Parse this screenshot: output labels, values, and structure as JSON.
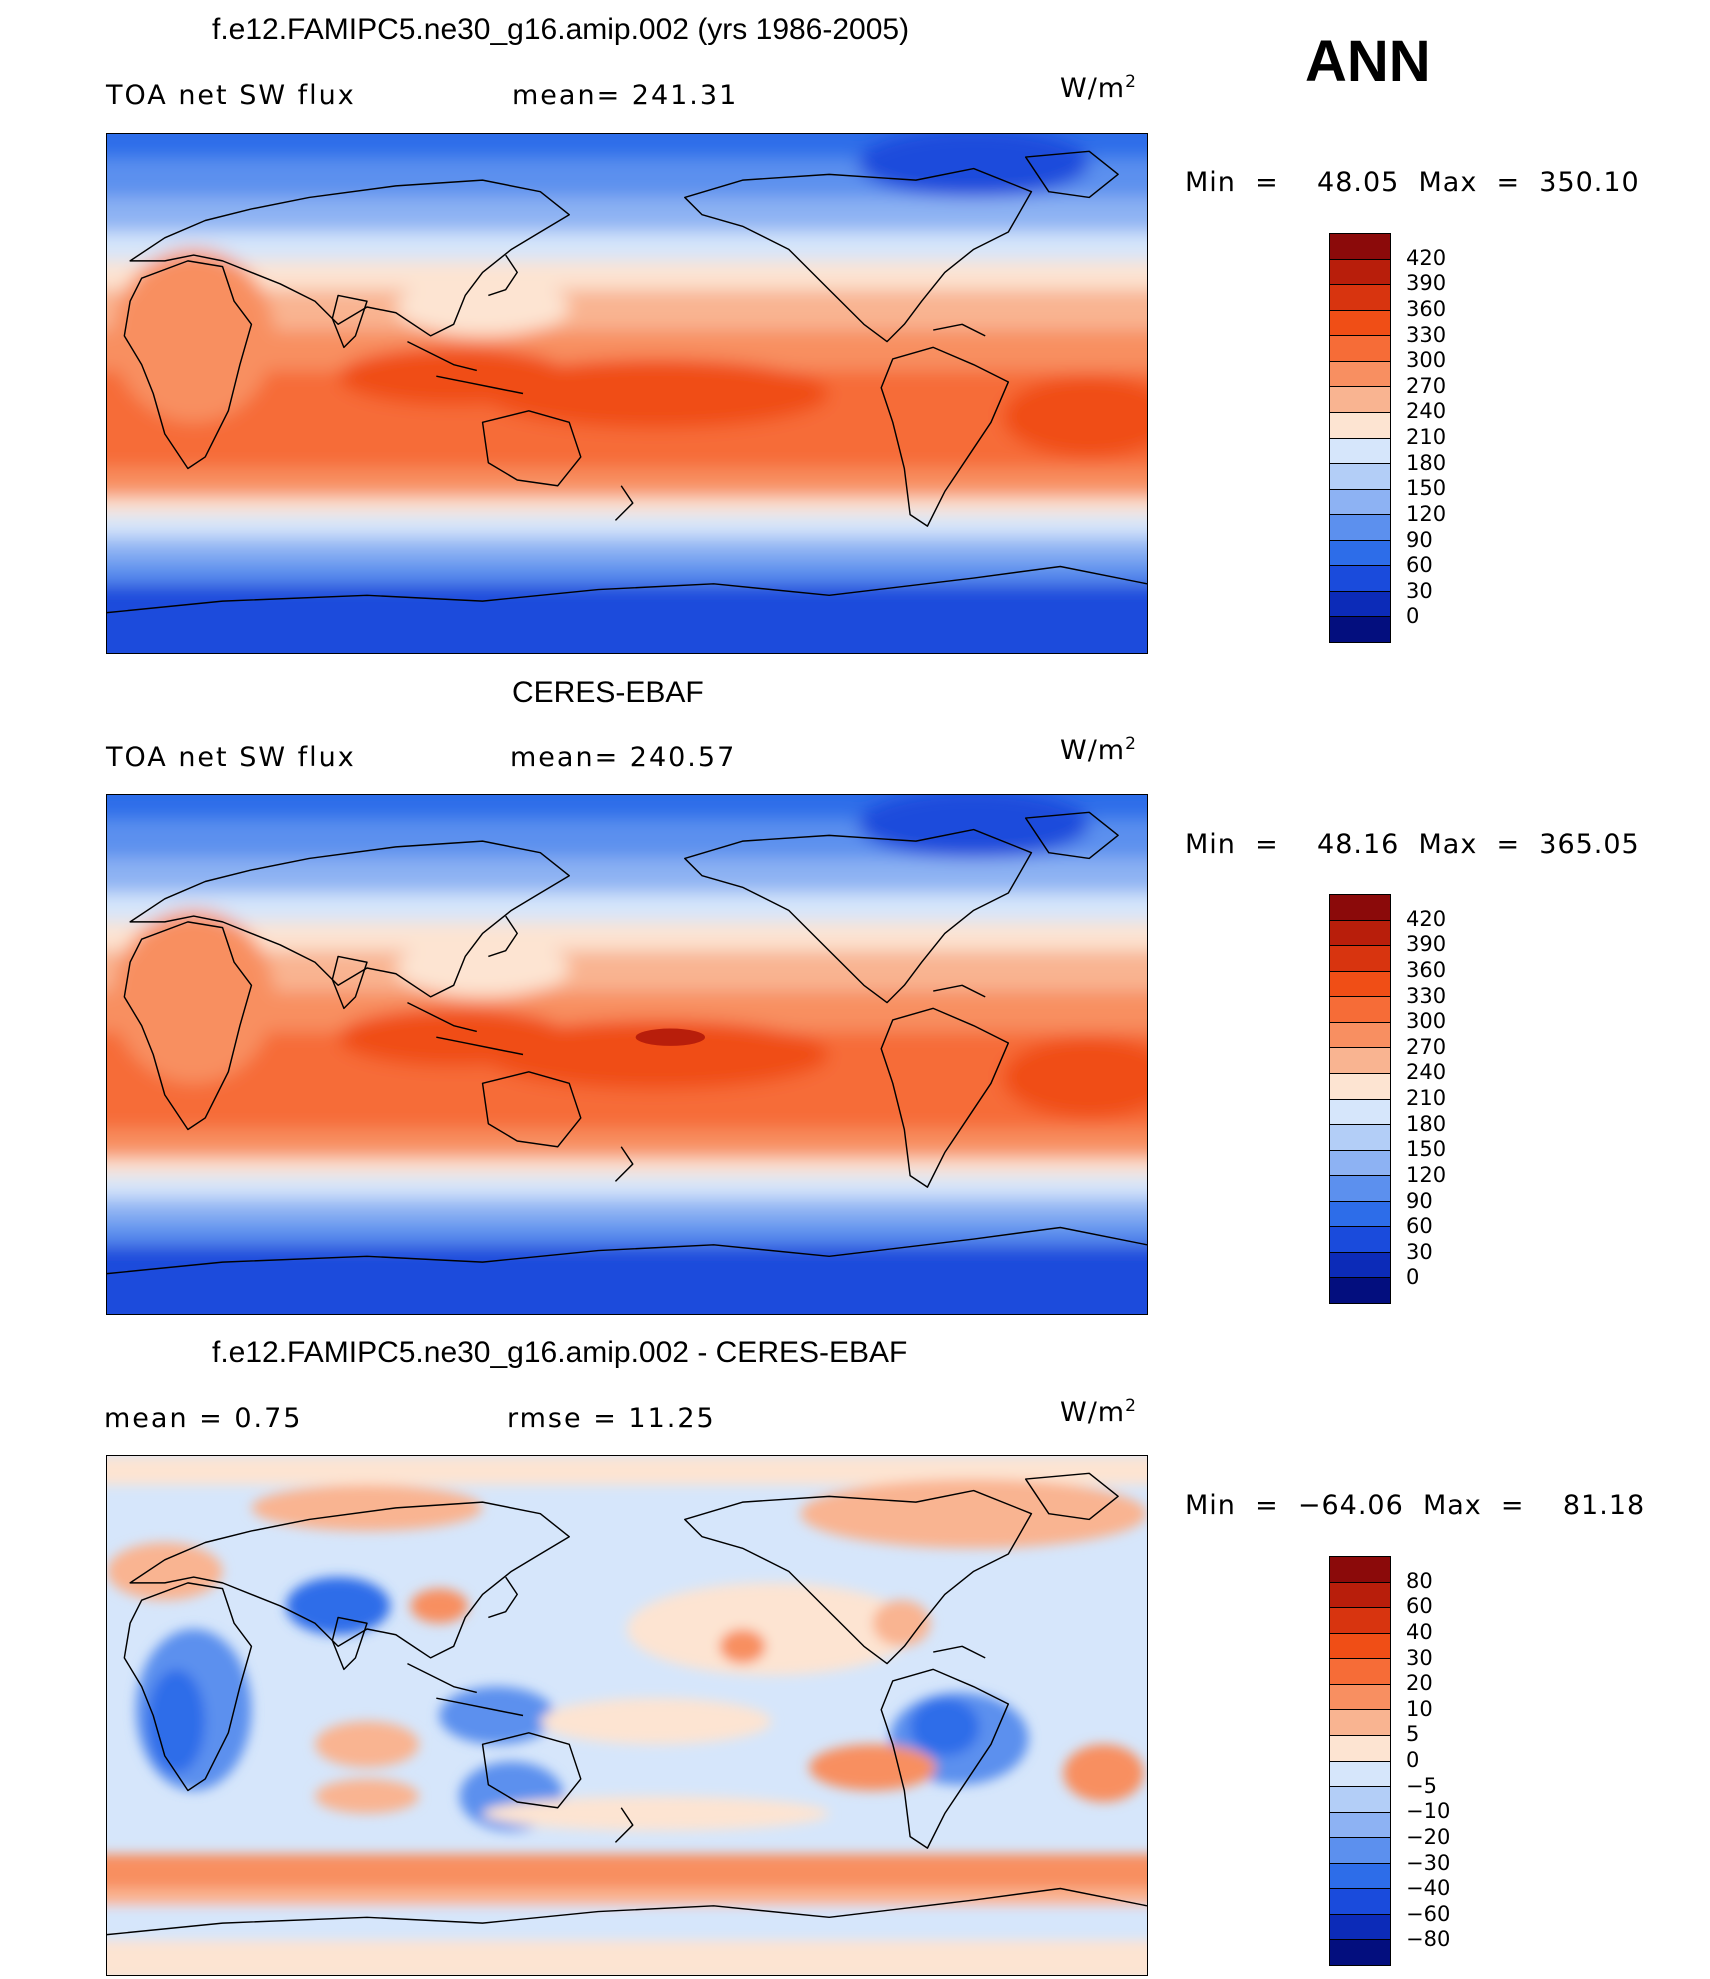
{
  "season": "ANN",
  "units_base": "W/m",
  "units_exp": "2",
  "panels": [
    {
      "title": "f.e12.FAMIPC5.ne30_g16.amip.002 (yrs 1986-2005)",
      "left_label": "TOA net SW flux",
      "right_label": "mean=  241.31",
      "minmax": "Min  =    48.05  Max  =  350.10"
    },
    {
      "title": "CERES-EBAF",
      "left_label": "TOA net SW flux",
      "right_label": "mean=  240.57",
      "minmax": "Min  =    48.16  Max  =  365.05"
    },
    {
      "title": "f.e12.FAMIPC5.ne30_g16.amip.002 - CERES-EBAF",
      "left_label": "mean  =      0.75",
      "right_label": "rmse  =     11.25",
      "minmax": "Min  =  −64.06  Max  =    81.18"
    }
  ],
  "colorbars": {
    "abs_levels": [
      "420",
      "390",
      "360",
      "330",
      "300",
      "270",
      "240",
      "210",
      "180",
      "150",
      "120",
      "90",
      "60",
      "30",
      "0"
    ],
    "diff_levels": [
      "80",
      "60",
      "40",
      "30",
      "20",
      "10",
      "5",
      "0",
      "−5",
      "−10",
      "−20",
      "−30",
      "−40",
      "−60",
      "−80"
    ],
    "colors": [
      "#8b0a0a",
      "#b81e0b",
      "#d8340f",
      "#f04e16",
      "#f66c37",
      "#f88f61",
      "#f9b491",
      "#fde4d2",
      "#d6e6fb",
      "#b3cef7",
      "#8db2f3",
      "#5c90ee",
      "#2d6de9",
      "#1a4bdc",
      "#0c2bb8",
      "#030e7e"
    ]
  }
}
